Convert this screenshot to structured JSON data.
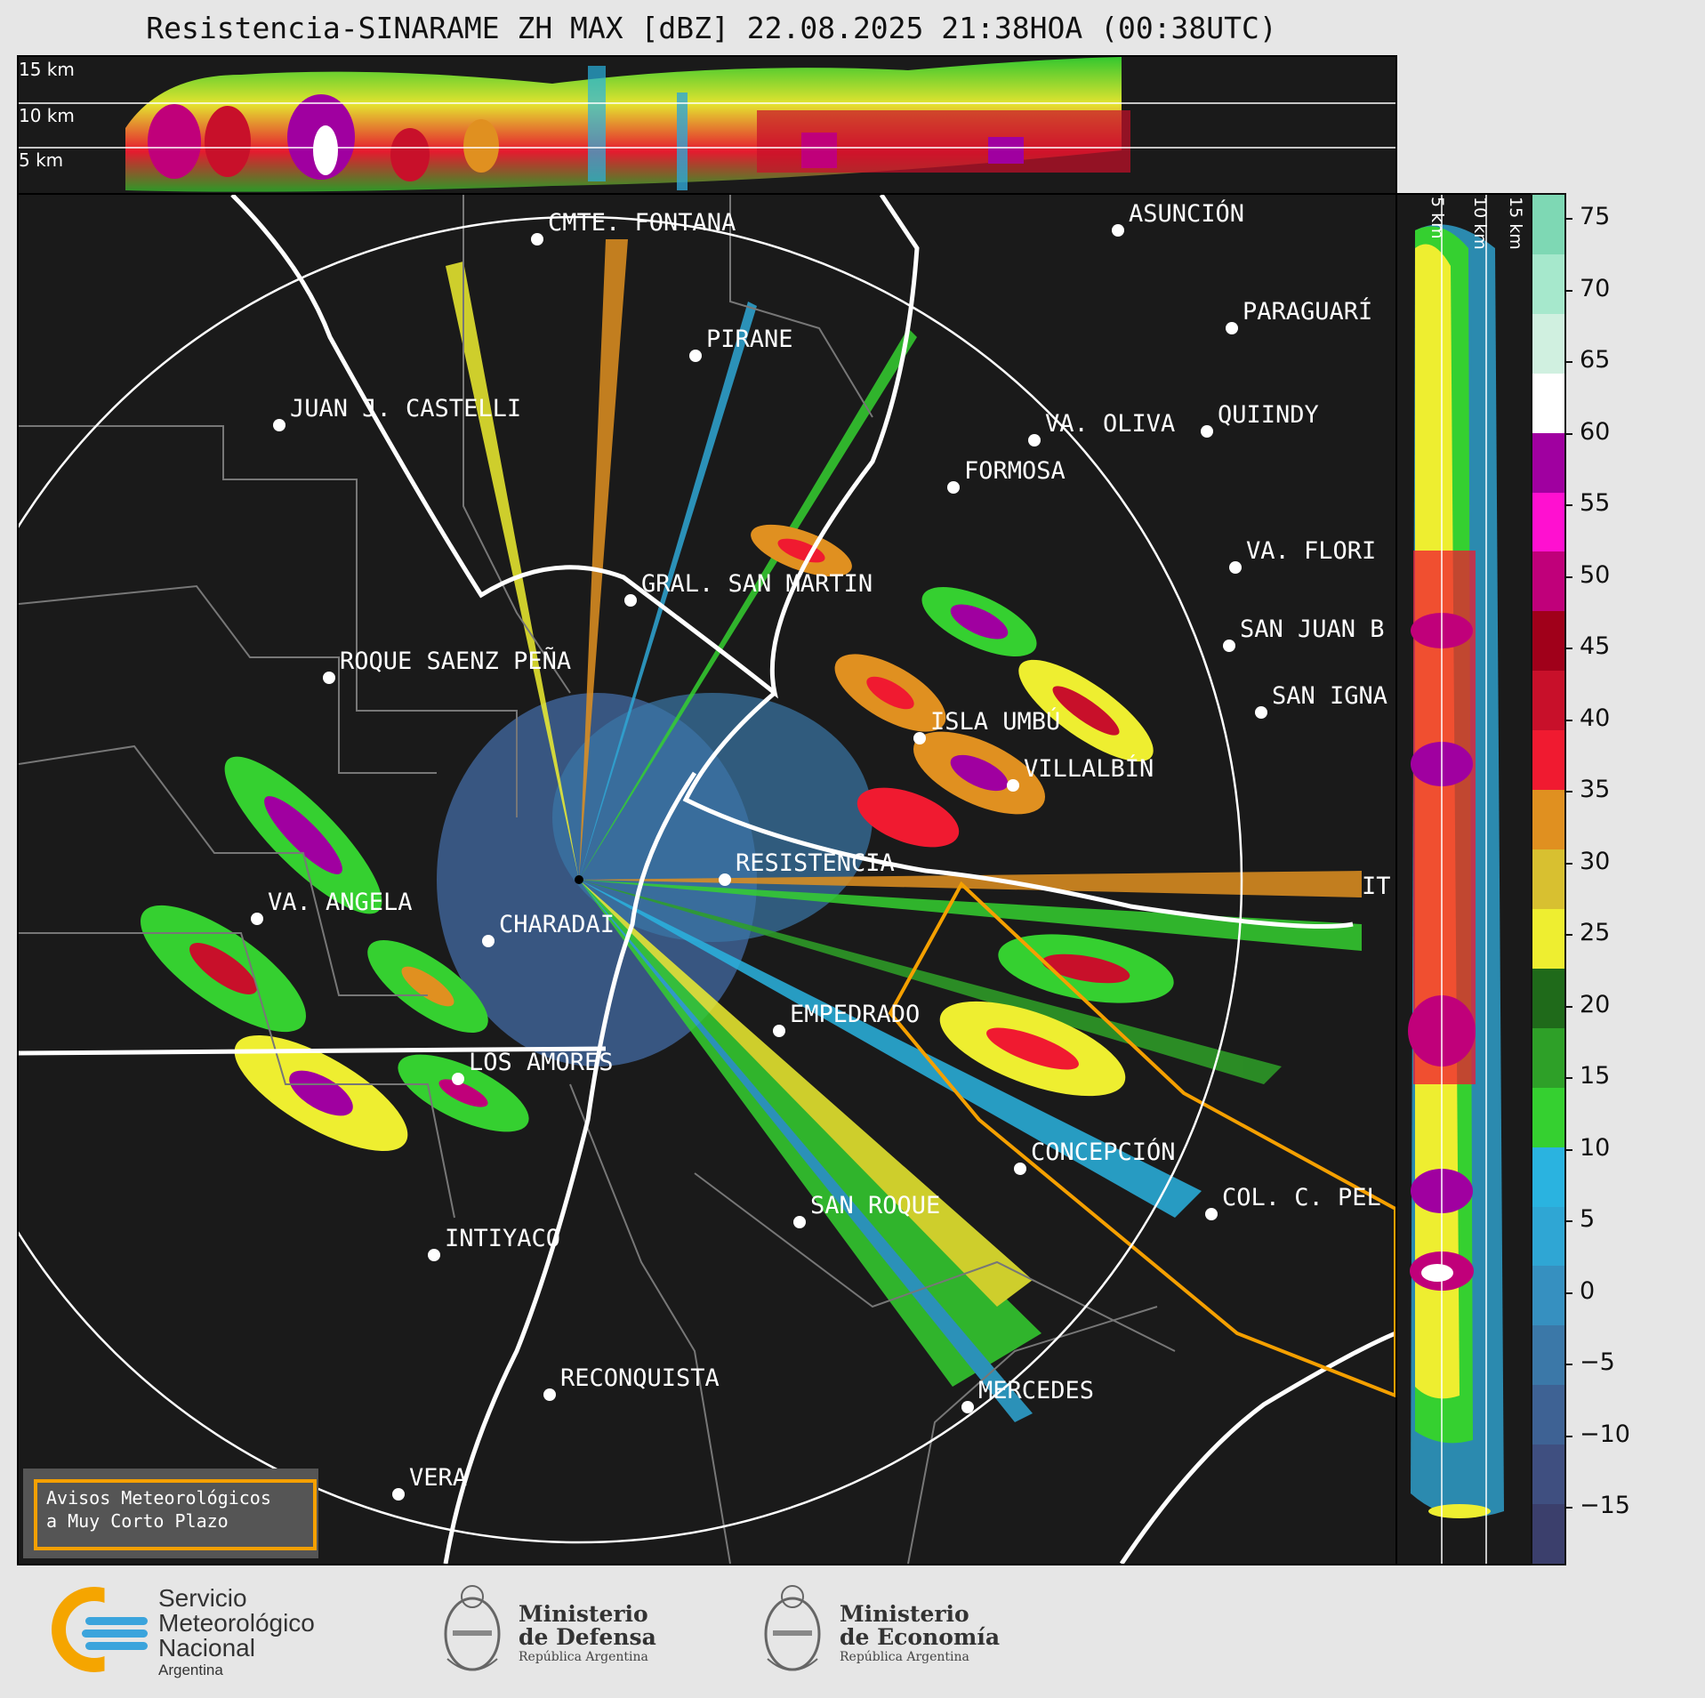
{
  "title": "Resistencia-SINARAME ZH MAX [dBZ] 22.08.2025 21:38HOA (00:38UTC)",
  "top_panel": {
    "labels": [
      "15 km",
      "10 km",
      "5 km"
    ]
  },
  "right_panel": {
    "labels": [
      "5 km",
      "10 km",
      "15 km"
    ]
  },
  "cities": [
    {
      "name": "CMTE. FONTANA"
    },
    {
      "name": "ASUNCIÓN"
    },
    {
      "name": "PARAGUARÍ"
    },
    {
      "name": "PIRANE"
    },
    {
      "name": "JUAN J. CASTELLI"
    },
    {
      "name": "VA. OLIVA"
    },
    {
      "name": "QUIINDY"
    },
    {
      "name": "FORMOSA"
    },
    {
      "name": "VA. FLORI"
    },
    {
      "name": "GRAL. SAN MARTIN"
    },
    {
      "name": "SAN JUAN B"
    },
    {
      "name": "ROQUE SAENZ PEÑA"
    },
    {
      "name": "SAN IGNA"
    },
    {
      "name": "ISLA UMBÚ"
    },
    {
      "name": "VILLALBÍN"
    },
    {
      "name": "RESISTENCIA"
    },
    {
      "name": "VA. ANGELA"
    },
    {
      "name": "CHARADAI"
    },
    {
      "name": "IT"
    },
    {
      "name": "EMPEDRADO"
    },
    {
      "name": "LOS AMORES"
    },
    {
      "name": "CONCEPCIÓN"
    },
    {
      "name": "SAN ROQUE"
    },
    {
      "name": "COL. C. PEL"
    },
    {
      "name": "INTIYACO"
    },
    {
      "name": "RECONQUISTA"
    },
    {
      "name": "MERCEDES"
    },
    {
      "name": "VERA"
    }
  ],
  "colorbar": {
    "unit": "dBZ",
    "ticks": [
      "75",
      "70",
      "65",
      "60",
      "55",
      "50",
      "45",
      "40",
      "35",
      "30",
      "25",
      "20",
      "15",
      "10",
      "5",
      "0",
      "−5",
      "−10",
      "−15"
    ],
    "colors": [
      "#3b3f6c",
      "#3f4f80",
      "#3e6294",
      "#3b78a8",
      "#3690c0",
      "#2fa6d4",
      "#2ab3e0",
      "#35d030",
      "#2ea028",
      "#1f6a1a",
      "#eeee30",
      "#d8c030",
      "#e09020",
      "#f01a30",
      "#c8102a",
      "#a0001a",
      "#c0007a",
      "#ff10d0",
      "#a000a0",
      "#ffffff",
      "#d0f0e0",
      "#a6e8cc",
      "#7ed8b4"
    ]
  },
  "notice": {
    "line1": "Avisos Meteorológicos",
    "line2": "a Muy Corto Plazo"
  },
  "footer": {
    "smn_line1": "Servicio",
    "smn_line2": "Meteorológico",
    "smn_line3": "Nacional",
    "smn_line4": "Argentina",
    "defensa_line1": "Ministerio",
    "defensa_line2": "de Defensa",
    "defensa_line3": "República Argentina",
    "economia_line1": "Ministerio",
    "economia_line2": "de Economía",
    "economia_line3": "República Argentina"
  }
}
